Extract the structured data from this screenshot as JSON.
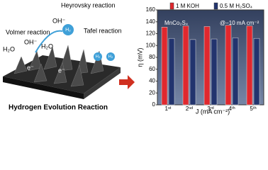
{
  "illustration": {
    "labels": [
      "Heyrovsky reaction",
      "Volmer reaction",
      "Tafel reaction",
      "H₂O",
      "OH⁻",
      "H₂O",
      "OH⁻",
      "H₂",
      "e⁻",
      "e⁻",
      "H₂",
      "H₂"
    ],
    "caption": "Hydrogen Evolution Reaction"
  },
  "chart_data": {
    "type": "bar",
    "title": "MnCo₂S₄",
    "subtitle": "@−10 mA cm⁻²",
    "x_label": "J (mA cm⁻²)",
    "y_label": "η (mV)",
    "categories": [
      "1ˢᵗ",
      "2ⁿᵈ",
      "3ʳᵈ",
      "4ᵗʰ",
      "5ᵗʰ"
    ],
    "series": [
      {
        "name": "1 M KOH",
        "color": "#e0282e",
        "values": [
          131,
          133,
          132,
          134,
          133
        ]
      },
      {
        "name": "0.5 M H₂SO₄",
        "color": "#22346e",
        "values": [
          112,
          110,
          111,
          113,
          112
        ]
      }
    ],
    "ylim": [
      0,
      160
    ],
    "yticks": [
      0,
      20,
      40,
      60,
      80,
      100,
      120,
      140,
      160
    ],
    "grid": false
  }
}
